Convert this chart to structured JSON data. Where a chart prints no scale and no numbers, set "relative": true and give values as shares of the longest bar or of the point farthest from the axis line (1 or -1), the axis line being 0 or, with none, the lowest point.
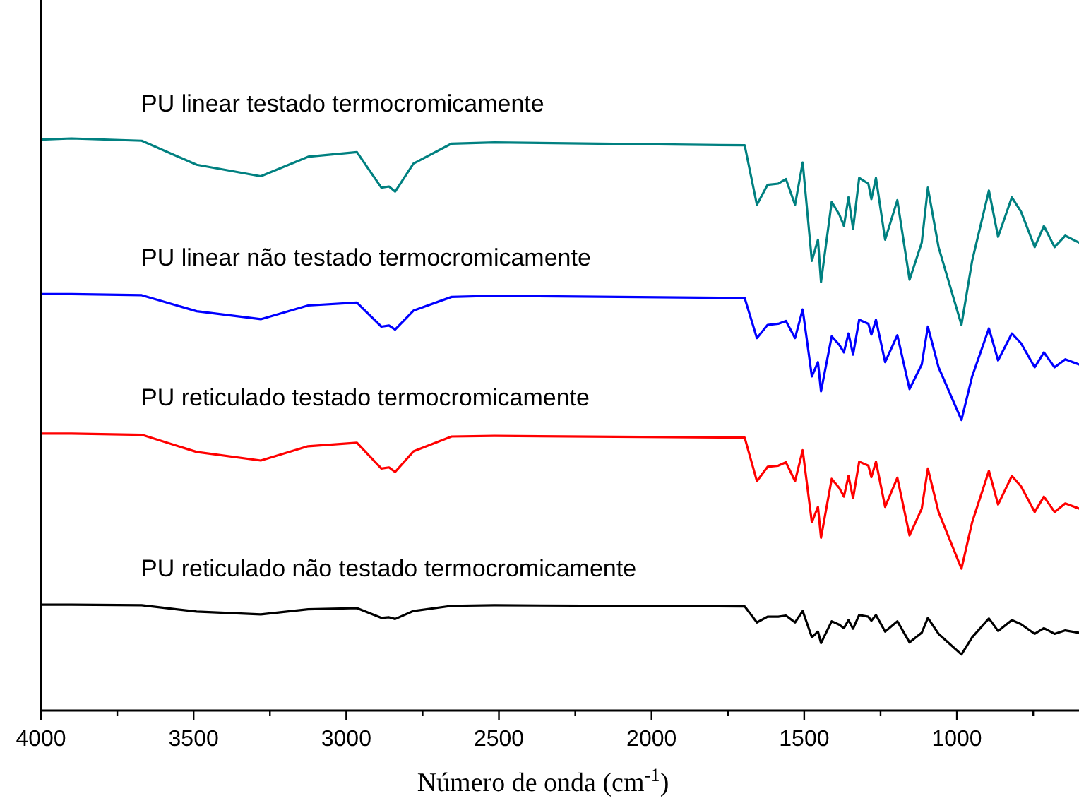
{
  "chart_data": {
    "type": "line",
    "relative": true,
    "xlabel": "Número de onda (cm$^{-1}$)",
    "x": [
      4000,
      3900,
      3670,
      3490,
      3280,
      3125,
      2965,
      2885,
      2860,
      2840,
      2780,
      2655,
      2515,
      1695,
      1655,
      1620,
      1585,
      1560,
      1530,
      1505,
      1475,
      1455,
      1445,
      1410,
      1385,
      1370,
      1355,
      1340,
      1320,
      1290,
      1280,
      1265,
      1235,
      1195,
      1155,
      1115,
      1095,
      1060,
      985,
      950,
      895,
      865,
      820,
      790,
      745,
      715,
      680,
      645,
      600
    ],
    "xlim": [
      4000,
      600
    ],
    "xticks": [
      4000,
      {
        "value": 3750,
        "label": null
      },
      3500,
      {
        "value": 3250,
        "label": null
      },
      3000,
      {
        "value": 2750,
        "label": null
      },
      2500,
      {
        "value": 2250,
        "label": null
      },
      2000,
      {
        "value": 1750,
        "label": null
      },
      1500,
      {
        "value": 1250,
        "label": null
      },
      1000,
      {
        "value": 750,
        "label": null
      }
    ],
    "marker": "none",
    "line_style": "solid",
    "grid": false,
    "series": [
      {
        "name": "PU linear testado termocromicamente",
        "color": "#008080",
        "values": [
          0.998,
          1.0,
          0.996,
          0.954,
          0.934,
          0.968,
          0.976,
          0.914,
          0.916,
          0.907,
          0.956,
          0.991,
          0.993,
          0.988,
          0.884,
          0.919,
          0.921,
          0.929,
          0.884,
          0.958,
          0.786,
          0.823,
          0.749,
          0.889,
          0.867,
          0.847,
          0.897,
          0.842,
          0.931,
          0.921,
          0.894,
          0.931,
          0.823,
          0.892,
          0.753,
          0.818,
          0.914,
          0.81,
          0.674,
          0.786,
          0.909,
          0.828,
          0.897,
          0.872,
          0.81,
          0.847,
          0.81,
          0.83,
          0.818
        ]
      },
      {
        "name": "PU linear não testado termocromicamente",
        "color": "#0000ff",
        "values": [
          0.728,
          0.728,
          0.726,
          0.698,
          0.684,
          0.708,
          0.713,
          0.671,
          0.673,
          0.666,
          0.699,
          0.723,
          0.725,
          0.721,
          0.651,
          0.674,
          0.676,
          0.681,
          0.651,
          0.701,
          0.584,
          0.609,
          0.558,
          0.654,
          0.639,
          0.626,
          0.659,
          0.622,
          0.683,
          0.676,
          0.657,
          0.683,
          0.609,
          0.656,
          0.562,
          0.605,
          0.671,
          0.6,
          0.508,
          0.584,
          0.668,
          0.612,
          0.659,
          0.642,
          0.6,
          0.626,
          0.6,
          0.614,
          0.605
        ]
      },
      {
        "name": "PU reticulado testado termocromicamente",
        "color": "#ff0000",
        "values": [
          0.484,
          0.484,
          0.482,
          0.452,
          0.437,
          0.462,
          0.468,
          0.423,
          0.425,
          0.417,
          0.453,
          0.479,
          0.48,
          0.477,
          0.401,
          0.426,
          0.428,
          0.434,
          0.401,
          0.455,
          0.329,
          0.356,
          0.302,
          0.405,
          0.389,
          0.374,
          0.41,
          0.371,
          0.435,
          0.428,
          0.408,
          0.435,
          0.356,
          0.407,
          0.306,
          0.353,
          0.423,
          0.347,
          0.248,
          0.329,
          0.419,
          0.36,
          0.41,
          0.392,
          0.347,
          0.374,
          0.347,
          0.362,
          0.353
        ]
      },
      {
        "name": "PU reticulado não testado termocromicamente",
        "color": "#000000",
        "values": [
          0.185,
          0.185,
          0.184,
          0.173,
          0.168,
          0.177,
          0.179,
          0.162,
          0.163,
          0.16,
          0.174,
          0.183,
          0.184,
          0.182,
          0.154,
          0.164,
          0.164,
          0.166,
          0.154,
          0.174,
          0.128,
          0.138,
          0.118,
          0.156,
          0.15,
          0.144,
          0.158,
          0.143,
          0.167,
          0.164,
          0.157,
          0.167,
          0.138,
          0.156,
          0.119,
          0.136,
          0.162,
          0.134,
          0.098,
          0.128,
          0.161,
          0.139,
          0.158,
          0.151,
          0.134,
          0.144,
          0.134,
          0.14,
          0.136
        ]
      }
    ]
  }
}
